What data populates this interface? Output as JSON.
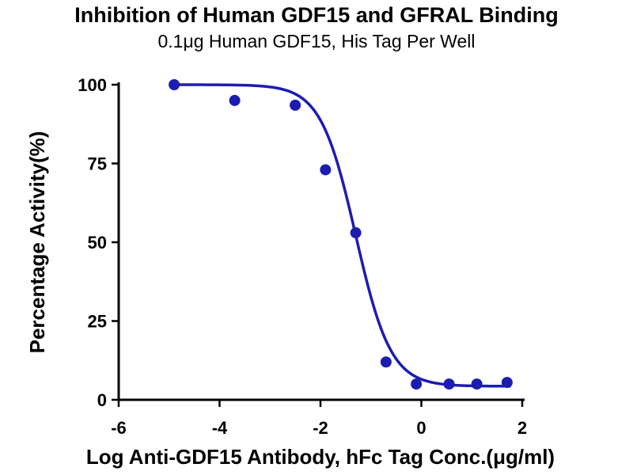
{
  "title": "Inhibition of Human GDF15 and GFRAL Binding",
  "subtitle": "0.1μg Human GDF15, His Tag Per Well",
  "chart_data": {
    "type": "scatter",
    "title": "Inhibition of Human GDF15 and GFRAL Binding",
    "subtitle": "0.1μg Human GDF15, His Tag Per Well",
    "xlabel": "Log Anti-GDF15 Antibody, hFc Tag Conc.(μg/ml)",
    "ylabel": "Percentage Activity(%)",
    "xlim": [
      -6,
      2
    ],
    "ylim": [
      0,
      100
    ],
    "x_ticks": [
      -6,
      -4,
      -2,
      0,
      2
    ],
    "y_ticks": [
      0,
      25,
      50,
      75,
      100
    ],
    "grid": false,
    "legend": "none",
    "point_color": "#1c1cb0",
    "line_color": "#1c1cb0",
    "axis_color": "#000000",
    "series": [
      {
        "x": [
          -4.9,
          -3.7,
          -2.5,
          -1.9,
          -1.3,
          -0.7,
          -0.1,
          0.55,
          1.1,
          1.7
        ],
        "y": [
          100,
          95,
          93.5,
          73,
          53,
          12,
          5,
          5,
          5,
          5.5
        ]
      }
    ],
    "fit_curve": {
      "model": "4PL",
      "top": 100,
      "bottom": 4.3,
      "logIC50": -1.3,
      "hillslope": 1.25,
      "x_range": [
        -4.95,
        1.75
      ]
    }
  }
}
